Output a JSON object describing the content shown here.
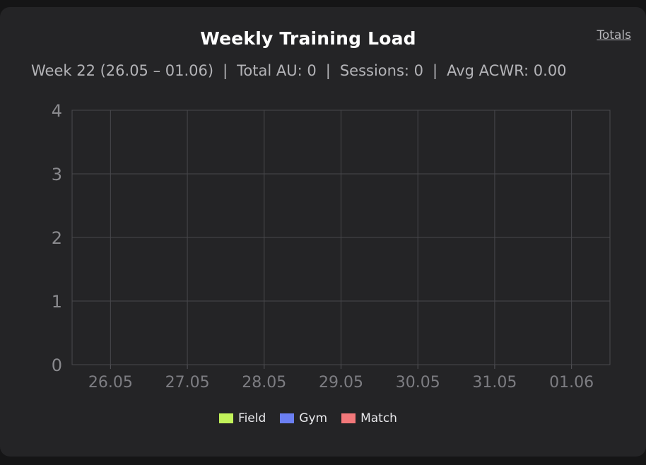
{
  "header": {
    "title": "Weekly Training Load",
    "totals_link": "Totals"
  },
  "summary": {
    "week": "Week 22 (26.05 – 01.06)",
    "total_au": "Total AU: 0",
    "sessions": "Sessions: 0",
    "avg_acwr": "Avg ACWR: 0.00",
    "separator": "|"
  },
  "colors": {
    "field": "#c2f25a",
    "gym": "#6b7ff2",
    "match": "#f2787a"
  },
  "chart_data": {
    "type": "bar",
    "title": "Weekly Training Load",
    "categories": [
      "26.05",
      "27.05",
      "28.05",
      "29.05",
      "30.05",
      "31.05",
      "01.06"
    ],
    "series": [
      {
        "name": "Field",
        "color": "#c2f25a",
        "values": [
          0,
          0,
          0,
          0,
          0,
          0,
          0
        ]
      },
      {
        "name": "Gym",
        "color": "#6b7ff2",
        "values": [
          0,
          0,
          0,
          0,
          0,
          0,
          0
        ]
      },
      {
        "name": "Match",
        "color": "#f2787a",
        "values": [
          0,
          0,
          0,
          0,
          0,
          0,
          0
        ]
      }
    ],
    "stacked": true,
    "ylim": [
      0,
      4
    ],
    "yticks": [
      "0",
      "1",
      "2",
      "3",
      "4"
    ],
    "grid": true,
    "legend": "bottom-center"
  }
}
